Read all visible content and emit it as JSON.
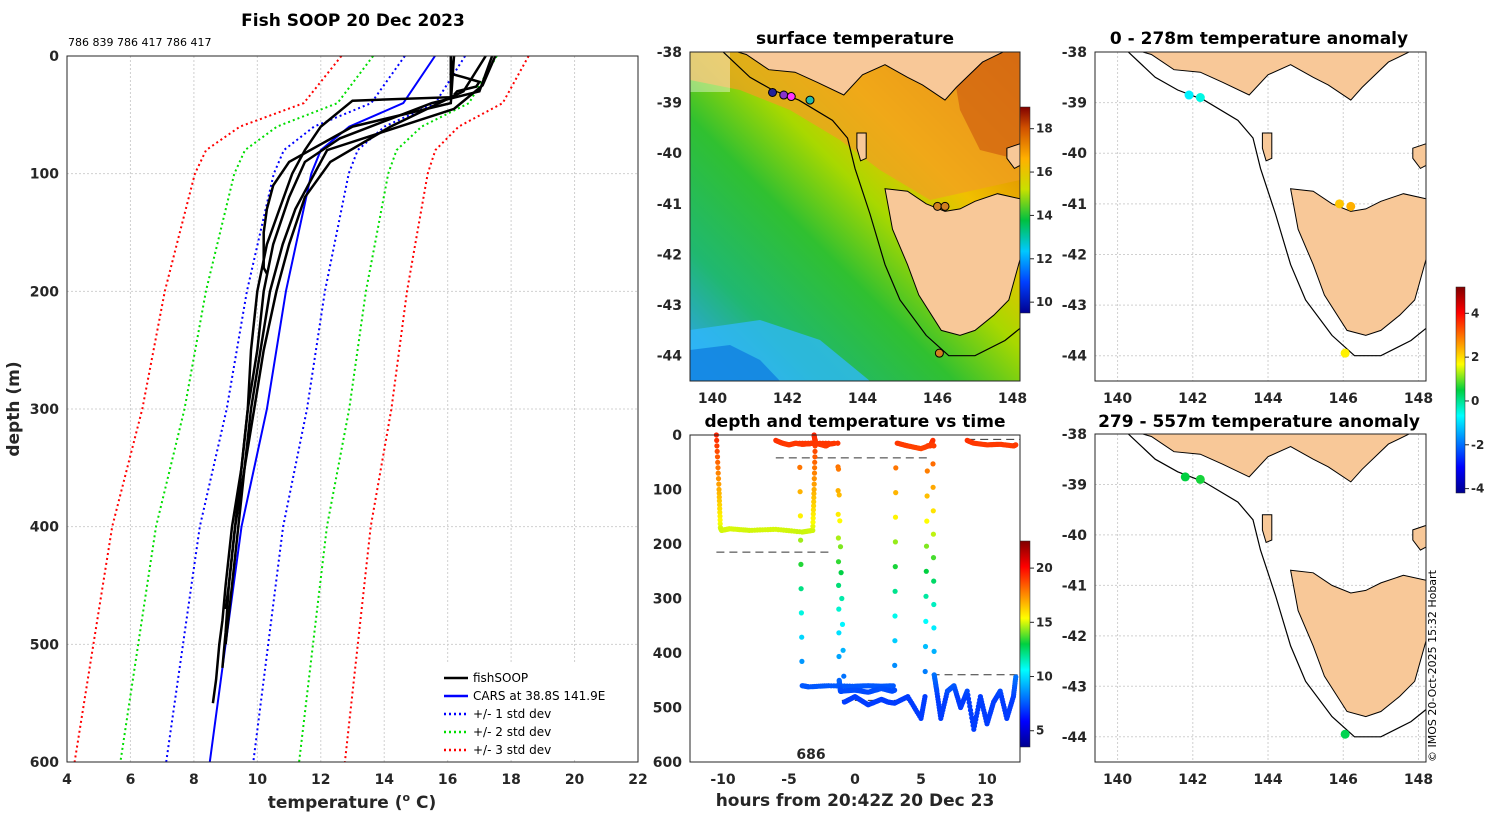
{
  "chart_data": [
    {
      "id": "profile",
      "type": "line",
      "title": "Fish SOOP 20 Dec 2023",
      "subtitle": "786 839 786 417 786 417",
      "xlabel": "temperature",
      "xlabel_unit_sup": "o",
      "xlabel_unit": "C",
      "ylabel": "depth (m)",
      "xlim": [
        4,
        22
      ],
      "ylim": [
        0,
        600
      ],
      "y_reversed": true,
      "xticks": [
        "4",
        "6",
        "8",
        "10",
        "12",
        "14",
        "16",
        "18",
        "20",
        "22"
      ],
      "yticks": [
        "0",
        "100",
        "200",
        "300",
        "400",
        "500",
        "600"
      ],
      "legend": [
        {
          "label": "fishSOOP",
          "color": "#000000",
          "style": "solid"
        },
        {
          "label": "CARS at 38.8S 141.9E",
          "color": "#0000ff",
          "style": "solid"
        },
        {
          "label": "+/- 1 std dev",
          "color": "#0000ff",
          "style": "dotted"
        },
        {
          "label": "+/- 2 std dev",
          "color": "#00dd00",
          "style": "dotted"
        },
        {
          "label": "+/- 3 std dev",
          "color": "#ff0000",
          "style": "dotted"
        }
      ],
      "cars_mean": {
        "depth": [
          0,
          40,
          60,
          80,
          100,
          150,
          200,
          300,
          400,
          500,
          600
        ],
        "temp": [
          15.6,
          14.6,
          12.9,
          12.0,
          11.7,
          11.3,
          10.9,
          10.3,
          9.5,
          9.0,
          8.5
        ]
      },
      "std_dev": [
        0.95,
        1.95,
        2.95
      ],
      "fishsoop_profiles": [
        {
          "depth": [
            0,
            35,
            38,
            60,
            80,
            100,
            130,
            160,
            200,
            250,
            300,
            350,
            400,
            450,
            480,
            500,
            530,
            550
          ],
          "temp": [
            16.1,
            16.1,
            13.0,
            12.0,
            11.5,
            11.1,
            10.7,
            10.3,
            10.0,
            9.8,
            9.7,
            9.5,
            9.2,
            9.0,
            8.9,
            8.8,
            8.7,
            8.6
          ]
        },
        {
          "depth": [
            0,
            30,
            40,
            70,
            90,
            120,
            160,
            200,
            250,
            300,
            350,
            400,
            450,
            490,
            520
          ],
          "temp": [
            17.4,
            17.0,
            15.5,
            12.6,
            11.5,
            11.0,
            10.5,
            10.2,
            10.0,
            9.7,
            9.5,
            9.3,
            9.1,
            9.0,
            8.9
          ]
        },
        {
          "depth": [
            0,
            25,
            45,
            80,
            100,
            130,
            160,
            200,
            250,
            300,
            350,
            400,
            450,
            470
          ],
          "temp": [
            17.5,
            17.1,
            16.2,
            12.2,
            11.8,
            11.2,
            10.8,
            10.4,
            10.1,
            9.8,
            9.6,
            9.3,
            9.1,
            9.0
          ]
        },
        {
          "depth": [
            0,
            40,
            60,
            90,
            110,
            130,
            150,
            180,
            185
          ],
          "temp": [
            16.2,
            16.1,
            13.0,
            11.0,
            10.5,
            10.3,
            10.2,
            10.2,
            10.3
          ]
        },
        {
          "depth": [
            0,
            30,
            60,
            90,
            120,
            160,
            200,
            250,
            300,
            350,
            400,
            450,
            500
          ],
          "temp": [
            17.2,
            16.5,
            14.2,
            12.3,
            11.5,
            11.0,
            10.6,
            10.2,
            9.9,
            9.6,
            9.4,
            9.2,
            9.0
          ]
        }
      ],
      "fishsoop_top": {
        "depth": [
          0,
          10,
          15,
          18,
          22,
          26,
          30,
          33
        ],
        "temp": [
          16.2,
          16.15,
          16.1,
          16.5,
          17.0,
          16.9,
          16.3,
          16.2
        ]
      }
    },
    {
      "id": "sst-map",
      "type": "heatmap",
      "title": "surface temperature",
      "xlim": [
        139.4,
        148.2
      ],
      "ylim": [
        -44.5,
        -38
      ],
      "xticks": [
        "140",
        "142",
        "144",
        "146",
        "148"
      ],
      "yticks": [
        "-38",
        "-39",
        "-40",
        "-41",
        "-42",
        "-43",
        "-44"
      ],
      "colorbar": {
        "min": 9.5,
        "max": 19,
        "ticks": [
          "10",
          "12",
          "14",
          "16",
          "18"
        ]
      },
      "markers": [
        {
          "lon": 141.6,
          "lat": -38.8,
          "color": "#222299"
        },
        {
          "lon": 141.9,
          "lat": -38.85,
          "color": "#8833cc"
        },
        {
          "lon": 142.1,
          "lat": -38.88,
          "color": "#ff33ff"
        },
        {
          "lon": 142.6,
          "lat": -38.95,
          "color": "#22bbaa"
        },
        {
          "lon": 146.0,
          "lat": -41.05,
          "color": "#d08020"
        },
        {
          "lon": 146.2,
          "lat": -41.05,
          "color": "#d08020"
        },
        {
          "lon": 146.05,
          "lat": -43.95,
          "color": "#d08020"
        }
      ]
    },
    {
      "id": "depth-time",
      "type": "scatter",
      "title": "depth and temperature vs time",
      "xlabel": "hours from 20:42Z 20 Dec 23",
      "xlim": [
        -12.5,
        12.5
      ],
      "ylim": [
        0,
        600
      ],
      "y_reversed": true,
      "xticks": [
        "-10",
        "-5",
        "0",
        "5",
        "10"
      ],
      "yticks": [
        "0",
        "100",
        "200",
        "300",
        "400",
        "500",
        "600"
      ],
      "annotation": "686",
      "colorbar": {
        "min": 3.5,
        "max": 22.5,
        "ticks": [
          "5",
          "10",
          "15",
          "20"
        ]
      },
      "segments": [
        {
          "t": [
            -10.5,
            -10.3,
            -10.2,
            -10.1,
            -9.5,
            -8,
            -6,
            -4,
            -3.2,
            -3.1,
            -3.0
          ],
          "d": [
            0,
            100,
            170,
            175,
            172,
            175,
            173,
            178,
            175,
            100,
            0
          ]
        },
        {
          "t": [
            -6,
            -5.5,
            -5,
            -4.5,
            -4,
            -3.5,
            -3.2
          ],
          "d": [
            10,
            15,
            18,
            15,
            17,
            16,
            15
          ]
        },
        {
          "t": [
            -3.1,
            -3.0,
            -2.5,
            -2.2,
            -2.0,
            -1.5
          ],
          "d": [
            0,
            15,
            18,
            20,
            17,
            15
          ]
        },
        {
          "t": [
            -2.0,
            -4.2,
            -4.0,
            -3.5,
            -2,
            0,
            1,
            2,
            3
          ],
          "d": [
            15,
            15,
            460,
            462,
            460,
            461,
            460,
            461,
            460
          ]
        },
        {
          "t": [
            -1.3,
            -1.2,
            -1.1,
            -1.0,
            0,
            1,
            2,
            2.8,
            3,
            3.1
          ],
          "d": [
            15,
            450,
            470,
            470,
            468,
            472,
            465,
            470,
            468,
            15
          ]
        },
        {
          "t": [
            -1.3,
            -0.8,
            0,
            1,
            2,
            2.5,
            3,
            4,
            5
          ],
          "d": [
            15,
            490,
            480,
            495,
            485,
            490,
            492,
            480,
            520
          ]
        },
        {
          "t": [
            5,
            5.3,
            5.5,
            5.7,
            5.9
          ],
          "d": [
            520,
            480,
            20,
            20,
            10
          ]
        },
        {
          "t": [
            5.9,
            6,
            6.2,
            6.5,
            7,
            7.5,
            8,
            8.5,
            9,
            9.5,
            10,
            10.5,
            11,
            11.5,
            12,
            12.2
          ],
          "d": [
            10,
            440,
            470,
            520,
            470,
            460,
            500,
            470,
            540,
            480,
            530,
            490,
            470,
            520,
            480,
            440
          ]
        },
        {
          "t": [
            3.2,
            4,
            5,
            5.8,
            6
          ],
          "d": [
            15,
            20,
            25,
            18,
            20
          ]
        },
        {
          "t": [
            8.5,
            9,
            10,
            11,
            12,
            12.2
          ],
          "d": [
            10,
            15,
            18,
            17,
            20,
            18
          ]
        }
      ],
      "dashes": [
        {
          "t0": -10.5,
          "t1": -2.0,
          "d": 215
        },
        {
          "t0": -6.0,
          "t1": 5.8,
          "d": 42
        },
        {
          "t0": -1.0,
          "t1": 4.0,
          "d": 487
        },
        {
          "t0": 5.8,
          "t1": 12.5,
          "d": 440
        },
        {
          "t0": 8.5,
          "t1": 12.5,
          "d": 8
        }
      ]
    },
    {
      "id": "anom-shallow",
      "type": "scatter",
      "title": "0 - 278m temperature anomaly",
      "xlim": [
        139.4,
        148.2
      ],
      "ylim": [
        -44.5,
        -38
      ],
      "xticks": [
        "140",
        "142",
        "144",
        "146",
        "148"
      ],
      "yticks": [
        "-38",
        "-39",
        "-40",
        "-41",
        "-42",
        "-43",
        "-44"
      ],
      "points": [
        {
          "lon": 141.9,
          "lat": -38.85,
          "value": -0.8
        },
        {
          "lon": 142.2,
          "lat": -38.9,
          "value": -0.5
        },
        {
          "lon": 145.9,
          "lat": -41.0,
          "value": 2.2
        },
        {
          "lon": 146.2,
          "lat": -41.05,
          "value": 2.4
        },
        {
          "lon": 146.05,
          "lat": -43.95,
          "value": 1.8
        }
      ]
    },
    {
      "id": "anom-deep",
      "type": "scatter",
      "title": "279 - 557m temperature anomaly",
      "xlim": [
        139.4,
        148.2
      ],
      "ylim": [
        -44.5,
        -38
      ],
      "xticks": [
        "140",
        "142",
        "144",
        "146",
        "148"
      ],
      "yticks": [
        "-38",
        "-39",
        "-40",
        "-41",
        "-42",
        "-43",
        "-44"
      ],
      "colorbar": {
        "min": -4.2,
        "max": 5.2,
        "ticks": [
          "4",
          "2",
          "0",
          "-2",
          "-4"
        ]
      },
      "points": [
        {
          "lon": 141.8,
          "lat": -38.85,
          "value": 0.5
        },
        {
          "lon": 142.2,
          "lat": -38.9,
          "value": 0.6
        },
        {
          "lon": 146.05,
          "lat": -43.95,
          "value": 0.4
        }
      ]
    }
  ],
  "credit": "© IMOS 20-Oct-2025 15:32 Hobart"
}
